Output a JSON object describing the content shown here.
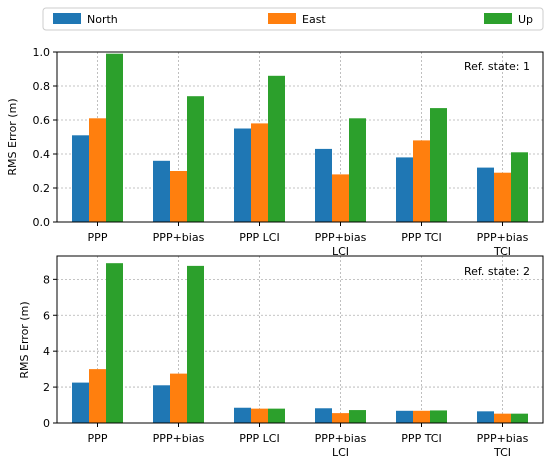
{
  "legend": [
    {
      "name": "North",
      "color": "#1f77b4"
    },
    {
      "name": "East",
      "color": "#ff7f0e"
    },
    {
      "name": "Up",
      "color": "#2ca02c"
    }
  ],
  "chart_data": [
    {
      "type": "bar",
      "categories": [
        [
          "PPP"
        ],
        [
          "PPP+bias"
        ],
        [
          "PPP LCI"
        ],
        [
          "PPP+bias",
          "LCI"
        ],
        [
          "PPP TCI"
        ],
        [
          "PPP+bias",
          "TCI"
        ]
      ],
      "series": [
        {
          "name": "North",
          "color": "#1f77b4",
          "values": [
            0.51,
            0.36,
            0.55,
            0.43,
            0.38,
            0.32
          ]
        },
        {
          "name": "East",
          "color": "#ff7f0e",
          "values": [
            0.61,
            0.3,
            0.58,
            0.28,
            0.48,
            0.29
          ]
        },
        {
          "name": "Up",
          "color": "#2ca02c",
          "values": [
            0.99,
            0.74,
            0.86,
            0.61,
            0.67,
            0.41
          ]
        }
      ],
      "ylabel": "RMS Error (m)",
      "ylim": [
        0,
        1.0
      ],
      "yticks": [
        0.0,
        0.2,
        0.4,
        0.6,
        0.8,
        1.0
      ],
      "yticklabels": [
        "0.0",
        "0.2",
        "0.4",
        "0.6",
        "0.8",
        "1.0"
      ],
      "annotation": "Ref. state: 1",
      "grid": true,
      "legend_position": "top"
    },
    {
      "type": "bar",
      "categories": [
        [
          "PPP"
        ],
        [
          "PPP+bias"
        ],
        [
          "PPP LCI"
        ],
        [
          "PPP+bias",
          "LCI"
        ],
        [
          "PPP TCI"
        ],
        [
          "PPP+bias",
          "TCI"
        ]
      ],
      "series": [
        {
          "name": "North",
          "color": "#1f77b4",
          "values": [
            2.25,
            2.1,
            0.85,
            0.82,
            0.68,
            0.65
          ]
        },
        {
          "name": "East",
          "color": "#ff7f0e",
          "values": [
            3.0,
            2.75,
            0.8,
            0.55,
            0.68,
            0.52
          ]
        },
        {
          "name": "Up",
          "color": "#2ca02c",
          "values": [
            8.9,
            8.75,
            0.8,
            0.72,
            0.7,
            0.52
          ]
        }
      ],
      "ylabel": "RMS Error (m)",
      "ylim": [
        0,
        9.3
      ],
      "yticks": [
        0,
        2,
        4,
        6,
        8
      ],
      "yticklabels": [
        "0",
        "2",
        "4",
        "6",
        "8"
      ],
      "annotation": "Ref. state: 2",
      "grid": true,
      "legend_position": "top"
    }
  ]
}
